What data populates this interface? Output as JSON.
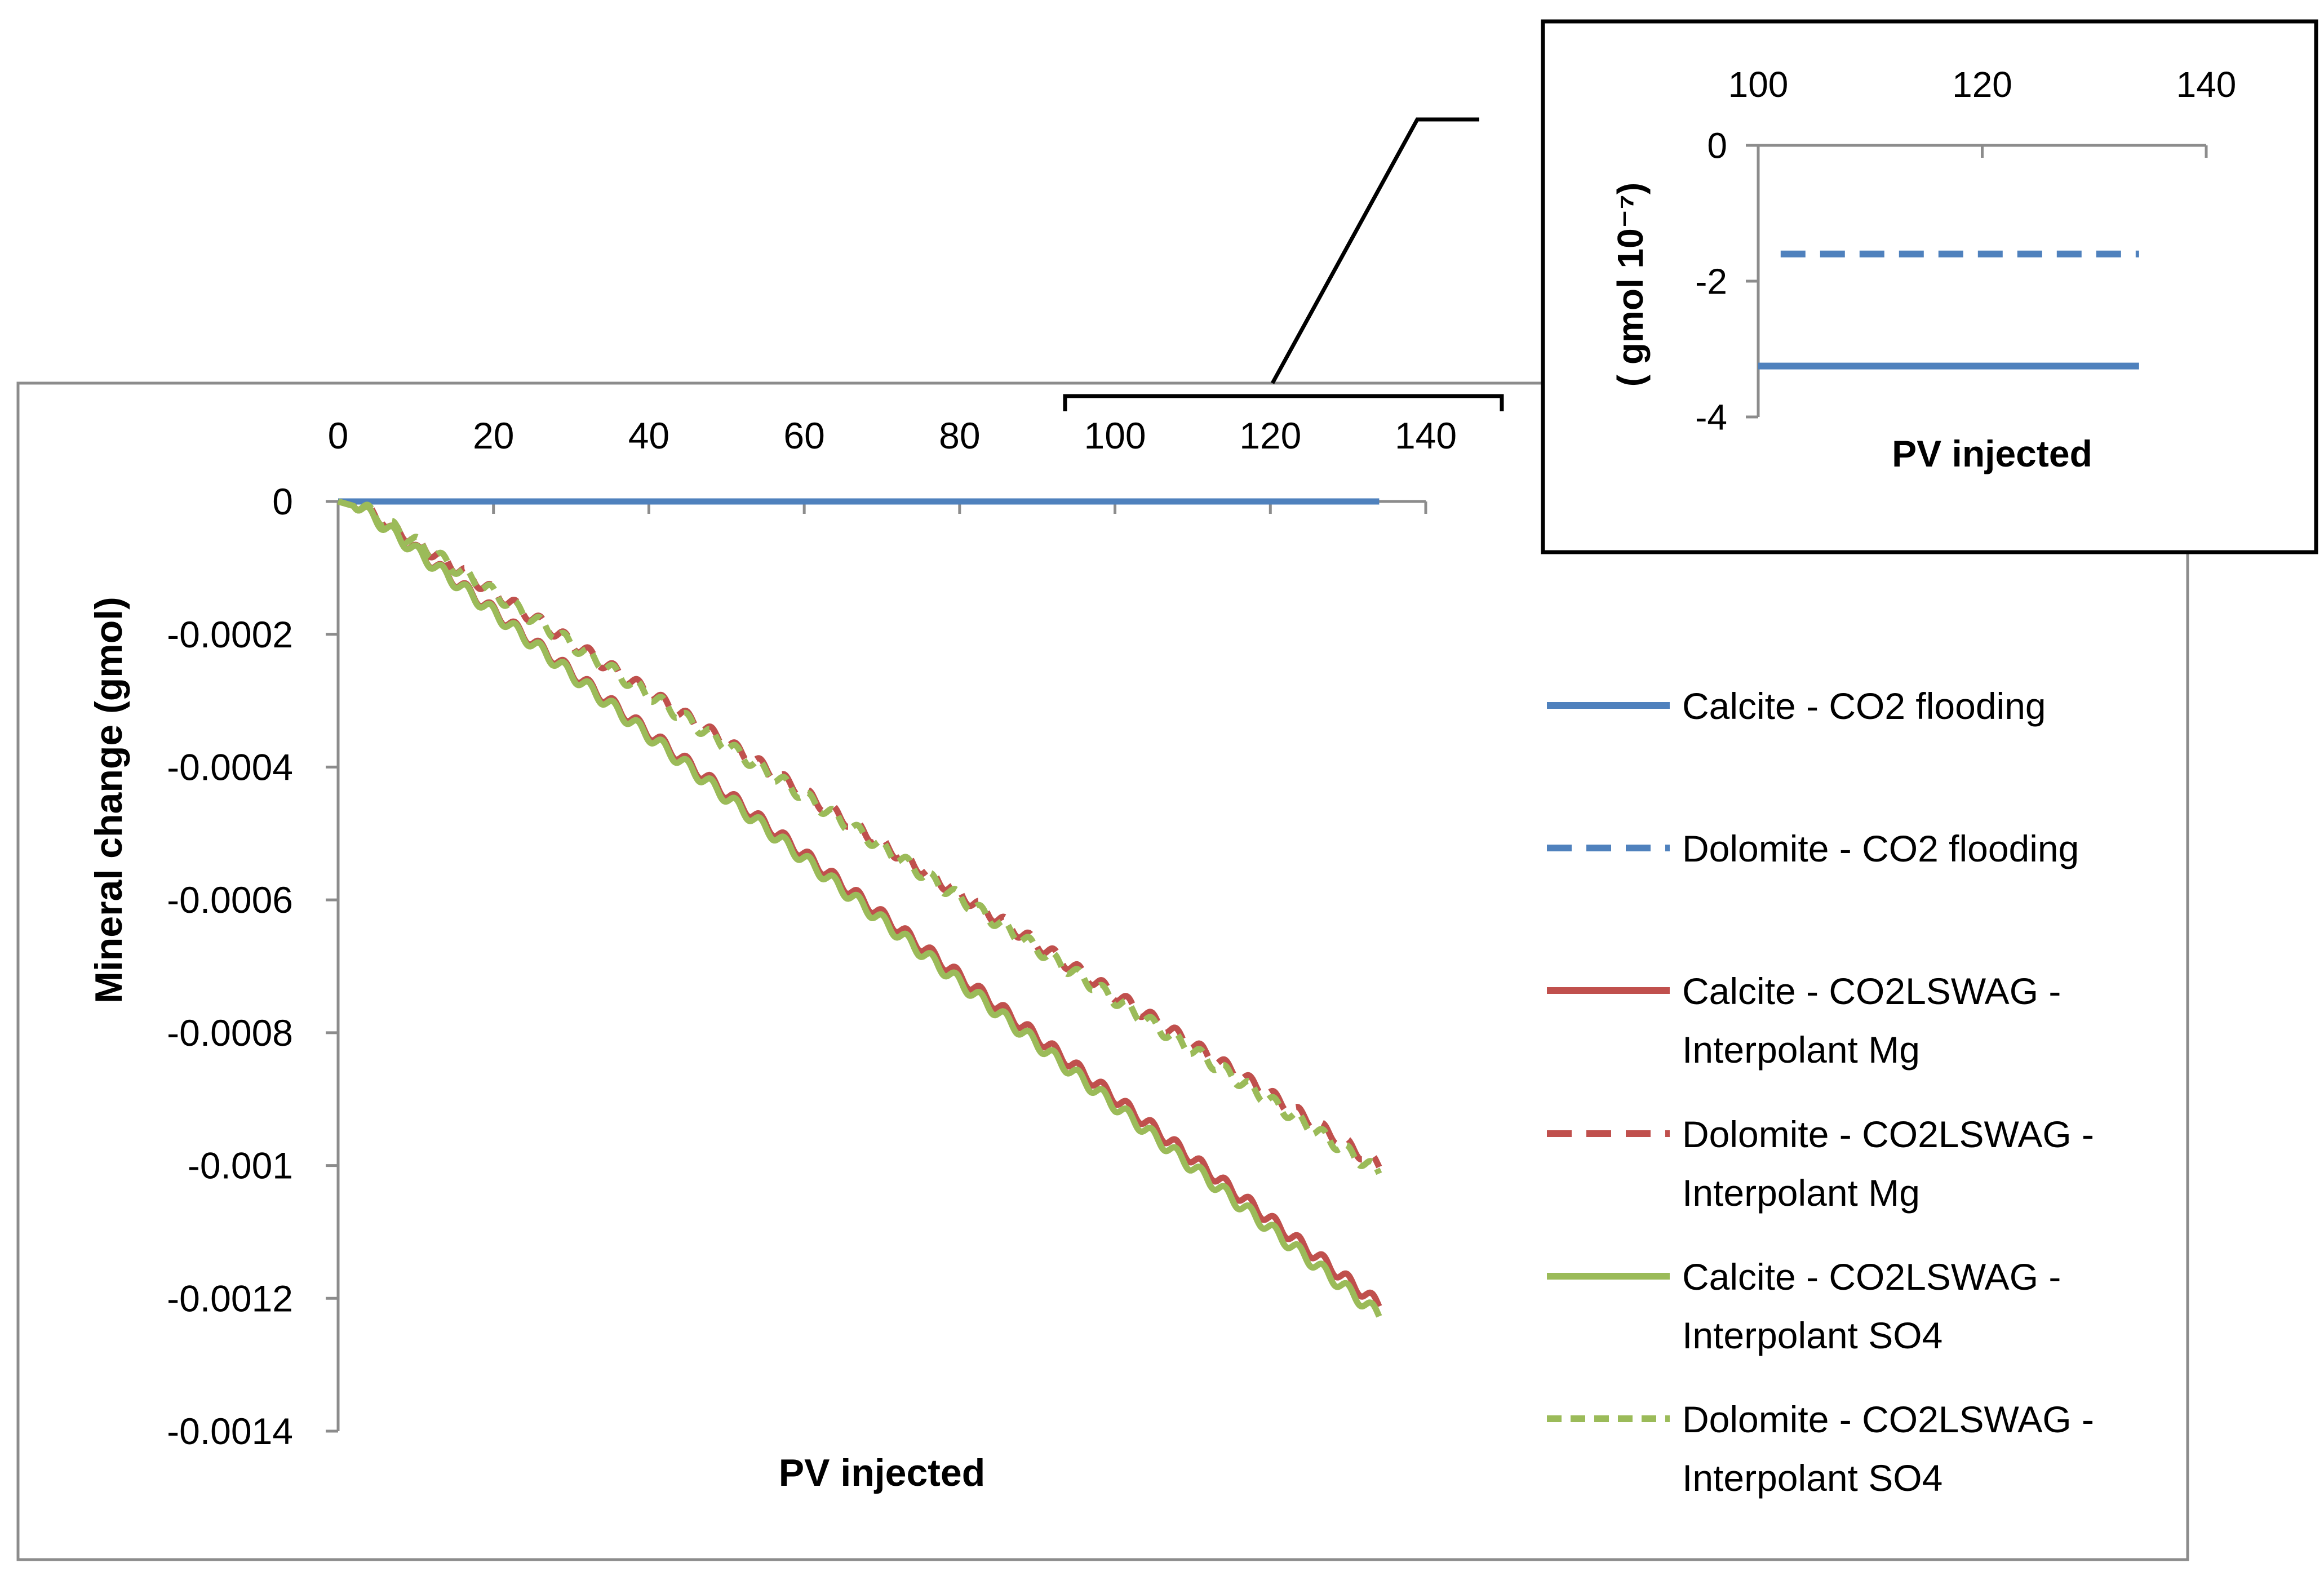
{
  "chart_data": [
    {
      "id": "main",
      "type": "line",
      "title": "",
      "xlabel": "PV injected",
      "ylabel": "Mineral change (gmol)",
      "xlim": [
        0,
        140
      ],
      "ylim": [
        -0.0014,
        0
      ],
      "x_ticks": [
        "0",
        "20",
        "40",
        "60",
        "80",
        "100",
        "120",
        "140"
      ],
      "x_tick_values": [
        0,
        20,
        40,
        60,
        80,
        100,
        120,
        140
      ],
      "y_ticks": [
        "0",
        "-0.0002",
        "-0.0004",
        "-0.0006",
        "-0.0008",
        "-0.001",
        "-0.0012",
        "-0.0014"
      ],
      "y_tick_values": [
        0,
        -0.0002,
        -0.0004,
        -0.0006,
        -0.0008,
        -0.001,
        -0.0012,
        -0.0014
      ],
      "x_axis_position": "top",
      "grid": false,
      "legend_position": "right",
      "series": [
        {
          "name": "Calcite - CO2 flooding",
          "legend_lines": [
            "Calcite - CO2 flooding"
          ],
          "color": "#4F81BD",
          "dash": "solid",
          "x": [
            0,
            134
          ],
          "y": [
            0,
            0
          ]
        },
        {
          "name": "Dolomite - CO2 flooding",
          "legend_lines": [
            "Dolomite - CO2 flooding"
          ],
          "color": "#4F81BD",
          "dash": "dash",
          "x": [
            0,
            134
          ],
          "y": [
            0,
            0
          ]
        },
        {
          "name": "Calcite - CO2LSWAG - Interpolant Mg",
          "legend_lines": [
            "Calcite - CO2LSWAG -",
            "Interpolant Mg"
          ],
          "color": "#C0504D",
          "dash": "solid",
          "x": [
            0,
            2,
            134
          ],
          "y": [
            0,
            0,
            -0.00121
          ],
          "wiggle": 9e-06
        },
        {
          "name": "Dolomite - CO2LSWAG - Interpolant Mg",
          "legend_lines": [
            "Dolomite - CO2LSWAG -",
            "Interpolant Mg"
          ],
          "color": "#C0504D",
          "dash": "dash",
          "x": [
            0,
            2,
            134
          ],
          "y": [
            0,
            0,
            -0.001
          ],
          "wiggle": 9e-06
        },
        {
          "name": "Calcite - CO2LSWAG - Interpolant SO4",
          "legend_lines": [
            "Calcite - CO2LSWAG -",
            "Interpolant SO4"
          ],
          "color": "#9BBB59",
          "dash": "solid",
          "x": [
            0,
            2,
            134
          ],
          "y": [
            0,
            0,
            -0.001225
          ],
          "wiggle": 9e-06
        },
        {
          "name": "Dolomite - CO2LSWAG - Interpolant SO4",
          "legend_lines": [
            "Dolomite - CO2LSWAG -",
            "Interpolant SO4"
          ],
          "color": "#9BBB59",
          "dash": "shortdash",
          "x": [
            0,
            2,
            134
          ],
          "y": [
            0,
            0,
            -0.00101
          ],
          "wiggle": 9e-06
        }
      ]
    },
    {
      "id": "inset",
      "type": "line",
      "title": "",
      "xlabel": "PV injected",
      "ylabel": "( gmol 10⁻⁷)",
      "xlim": [
        100,
        140
      ],
      "ylim": [
        -4,
        0
      ],
      "x_ticks": [
        "100",
        "120",
        "140"
      ],
      "x_tick_values": [
        100,
        120,
        140
      ],
      "y_ticks": [
        "0",
        "-2",
        "-4"
      ],
      "y_tick_values": [
        0,
        -2,
        -4
      ],
      "x_axis_position": "top",
      "grid": false,
      "series": [
        {
          "name": "Dolomite - CO2 flooding",
          "color": "#4F81BD",
          "dash": "dash",
          "x": [
            102,
            134
          ],
          "y": [
            -1.6,
            -1.6
          ]
        },
        {
          "name": "Calcite - CO2 flooding",
          "color": "#4F81BD",
          "dash": "solid",
          "x": [
            100,
            134
          ],
          "y": [
            -3.25,
            -3.25
          ]
        }
      ]
    }
  ]
}
